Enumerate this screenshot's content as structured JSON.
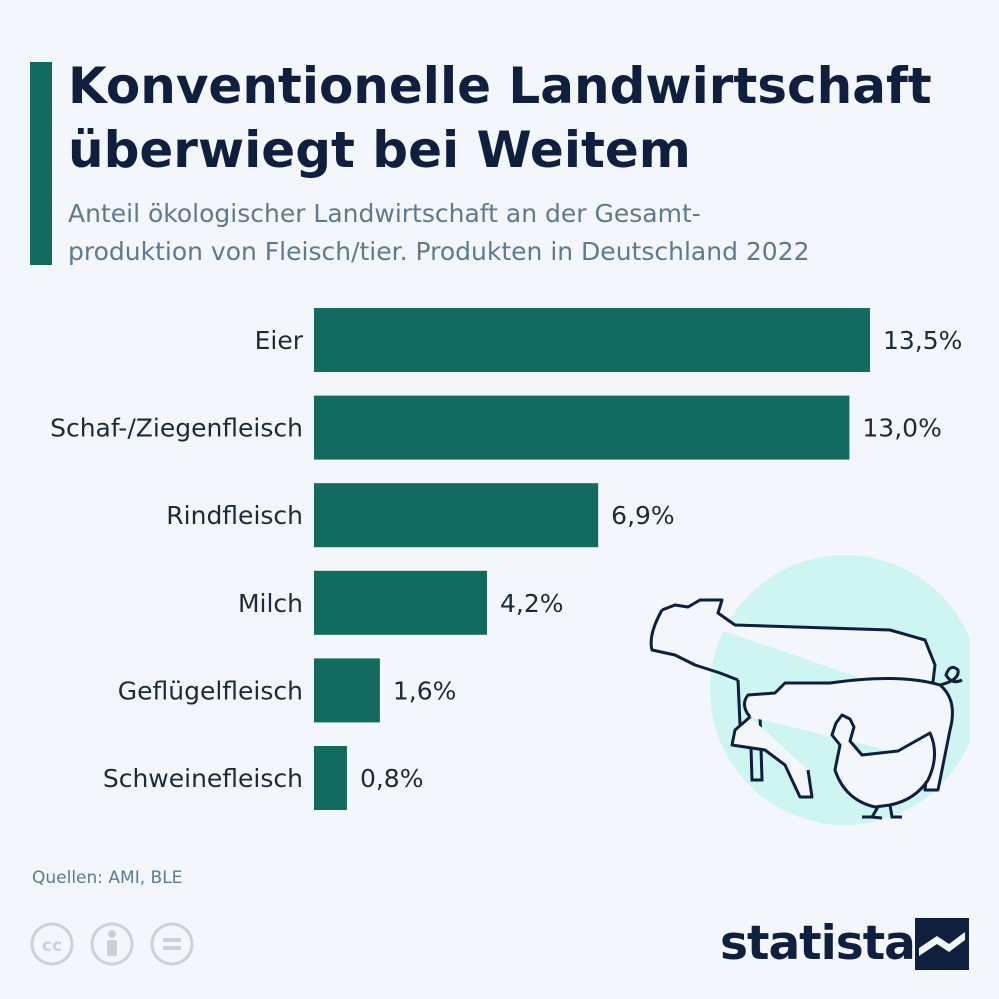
{
  "title": "Konventionelle Landwirtschaft überwiegt bei Weitem",
  "title_lines": [
    "Konventionelle Landwirtschaft",
    "überwiegt bei Weitem"
  ],
  "subtitle_lines": [
    "Anteil ökologischer Landwirtschaft an der Gesamt-",
    "produktion von Fleisch/tier. Produkten in Deutschland 2022"
  ],
  "source": "Quellen: AMI, BLE",
  "brand": "statista",
  "colors": {
    "bar": "#126b5e",
    "accent": "#126b5e",
    "title": "#0f1f3d",
    "subtitle": "#5e7a90",
    "background": "#f3f6fa",
    "illustration_circle": "#cff5f2"
  },
  "icons": [
    "cc-icon",
    "attribution-icon",
    "no-derivatives-icon",
    "statista-logo-icon",
    "farm-animals-illustration"
  ],
  "chart_data": {
    "type": "bar",
    "orientation": "horizontal",
    "categories": [
      "Eier",
      "Schaf-/Ziegenfleisch",
      "Rindfleisch",
      "Milch",
      "Geflügelfleisch",
      "Schweinefleisch"
    ],
    "values": [
      13.5,
      13.0,
      6.9,
      4.2,
      1.6,
      0.8
    ],
    "value_labels": [
      "13,5%",
      "13,0%",
      "6,9%",
      "4,2%",
      "1,6%",
      "0,8%"
    ],
    "unit": "%",
    "xlim": [
      0,
      13.5
    ],
    "grid": false,
    "legend": "none"
  }
}
